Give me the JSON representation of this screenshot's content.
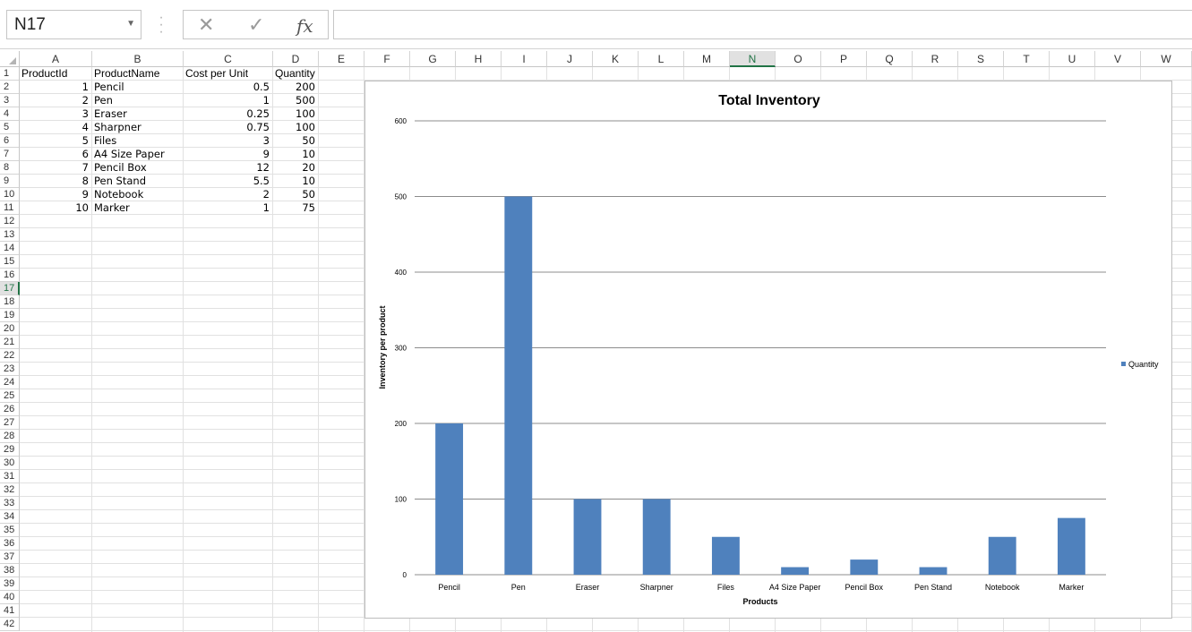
{
  "name_box": {
    "value": "N17"
  },
  "formula_bar": {
    "cancel_glyph": "✕",
    "enter_glyph": "✓",
    "function_glyph": "fx",
    "value": ""
  },
  "columns": [
    "A",
    "B",
    "C",
    "D",
    "E",
    "F",
    "G",
    "H",
    "I",
    "J",
    "K",
    "L",
    "M",
    "N",
    "O",
    "P",
    "Q",
    "R",
    "S",
    "T",
    "U",
    "V",
    "W"
  ],
  "selected_cell": {
    "column": "N",
    "row": 17
  },
  "rows": [
    "1",
    "2",
    "3",
    "4",
    "5",
    "6",
    "7",
    "8",
    "9",
    "10",
    "11",
    "12",
    "13",
    "14",
    "15",
    "16",
    "17",
    "18",
    "19",
    "20",
    "21",
    "22",
    "23",
    "24",
    "25",
    "26",
    "27",
    "28",
    "29",
    "30",
    "31",
    "32",
    "33",
    "34",
    "35",
    "36",
    "37",
    "38",
    "39",
    "40",
    "41",
    "42"
  ],
  "table": {
    "headers": [
      "ProductId",
      "ProductName",
      "Cost per Unit",
      "Quantity"
    ],
    "rows": [
      [
        "1",
        "Pencil",
        "0.5",
        "200"
      ],
      [
        "2",
        "Pen",
        "1",
        "500"
      ],
      [
        "3",
        "Eraser",
        "0.25",
        "100"
      ],
      [
        "4",
        "Sharpner",
        "0.75",
        "100"
      ],
      [
        "5",
        "Files",
        "3",
        "50"
      ],
      [
        "6",
        "A4 Size Paper",
        "9",
        "10"
      ],
      [
        "7",
        "Pencil Box",
        "12",
        "20"
      ],
      [
        "8",
        "Pen Stand",
        "5.5",
        "10"
      ],
      [
        "9",
        "Notebook",
        "2",
        "50"
      ],
      [
        "10",
        "Marker",
        "1",
        "75"
      ]
    ]
  },
  "chart_data": {
    "type": "bar",
    "title": "Total Inventory",
    "xlabel": "Products",
    "ylabel": "Inventory per product",
    "categories": [
      "Pencil",
      "Pen",
      "Eraser",
      "Sharpner",
      "Files",
      "A4 Size Paper",
      "Pencil Box",
      "Pen Stand",
      "Notebook",
      "Marker"
    ],
    "series": [
      {
        "name": "Quantity",
        "values": [
          200,
          500,
          100,
          100,
          50,
          10,
          20,
          10,
          50,
          75
        ],
        "color": "#4f81bd"
      }
    ],
    "ylim": [
      0,
      600
    ],
    "yticks": [
      0,
      100,
      200,
      300,
      400,
      500,
      600
    ],
    "grid": true,
    "legend": "right"
  }
}
